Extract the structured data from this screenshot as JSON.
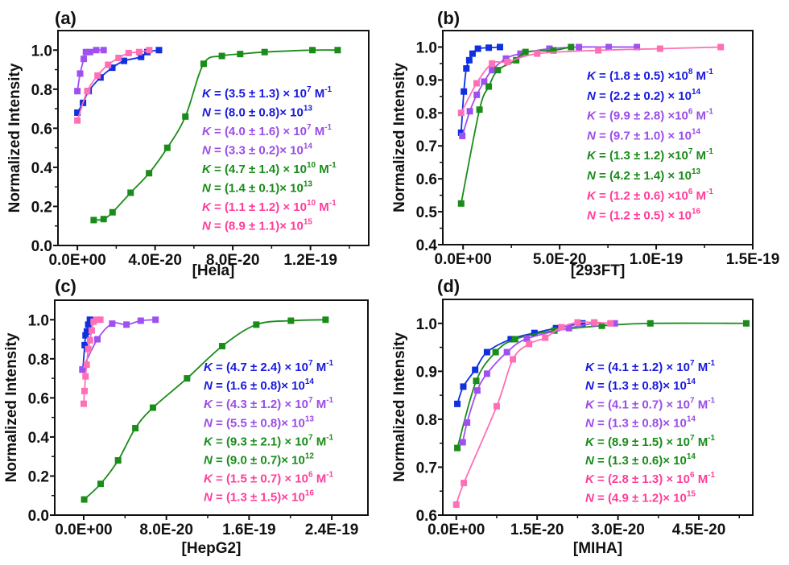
{
  "chart_data": [
    {
      "panel": "(a)",
      "type": "scatter",
      "xlabel": "[Hela]",
      "ylabel": "Normalized Intensity",
      "xlim": [
        -1e-20,
        1.5e-19
      ],
      "ylim": [
        0.0,
        1.1
      ],
      "xticks": [
        {
          "v": 0,
          "label": "0.0E+00"
        },
        {
          "v": 4e-20,
          "label": "4.0E-20"
        },
        {
          "v": 8e-20,
          "label": "8.0E-20"
        },
        {
          "v": 1.2e-19,
          "label": "1.2E-19"
        }
      ],
      "xminor": [
        2e-20,
        6e-20,
        1e-19,
        1.4e-19
      ],
      "yticks": [
        {
          "v": 0,
          "label": "0.0"
        },
        {
          "v": 0.2,
          "label": "0.2"
        },
        {
          "v": 0.4,
          "label": "0.4"
        },
        {
          "v": 0.6,
          "label": "0.6"
        },
        {
          "v": 0.8,
          "label": "0.8"
        },
        {
          "v": 1.0,
          "label": "1.0"
        }
      ],
      "yminor": [
        0.1,
        0.3,
        0.5,
        0.7,
        0.9
      ],
      "series": [
        {
          "color": "#1a8c1a",
          "x": [
            8.4e-21,
            1.35e-20,
            1.81e-20,
            2.74e-20,
            3.69e-20,
            4.63e-20,
            5.56e-20,
            6.5e-20,
            7.44e-20,
            8.38e-20,
            9.64e-20,
            1.21e-19,
            1.34e-19
          ],
          "y": [
            0.13,
            0.135,
            0.17,
            0.27,
            0.37,
            0.5,
            0.66,
            0.93,
            0.97,
            0.98,
            0.99,
            1.0,
            1.0
          ]
        },
        {
          "color": "#1030e0",
          "x": [
            0,
            2.9e-21,
            5.8e-21,
            1.19e-20,
            1.8e-20,
            2.4e-20,
            3.28e-20,
            3.6e-20,
            4.2e-20
          ],
          "y": [
            0.68,
            0.73,
            0.79,
            0.86,
            0.91,
            0.945,
            0.965,
            0.99,
            1.0
          ]
        },
        {
          "color": "#a050f0",
          "x": [
            0,
            1.4e-21,
            3.3e-21,
            4.4e-21,
            6.5e-21,
            9.7e-21,
            1.35e-20
          ],
          "y": [
            0.79,
            0.88,
            0.955,
            0.99,
            0.99,
            1.0,
            1.0
          ]
        },
        {
          "color": "#ff6fb5",
          "x": [
            0,
            5.1e-21,
            1.04e-20,
            1.58e-20,
            2.12e-20,
            2.64e-20,
            3.18e-20,
            3.7e-20
          ],
          "y": [
            0.64,
            0.79,
            0.87,
            0.925,
            0.96,
            0.985,
            0.99,
            1.0
          ]
        }
      ],
      "annotations": [
        {
          "color": "#1a1adc",
          "var": "K",
          "text": " = (3.5 ± 1.3) × 10",
          "exp": "7",
          "unit": " M",
          "unit_exp": "-1"
        },
        {
          "color": "#1a1adc",
          "var": "N",
          "text": " = (8.0 ± 0.8)× 10",
          "exp": "13"
        },
        {
          "color": "#9b4de6",
          "var": "K",
          "text": " = (4.0 ± 1.6) × 10",
          "exp": "7",
          "unit": " M",
          "unit_exp": "-1"
        },
        {
          "color": "#9b4de6",
          "var": "N",
          "text": " = (3.3 ± 0.2)× 10",
          "exp": "14"
        },
        {
          "color": "#1a8c1a",
          "var": "K",
          "text": " = (4.7 ± 1.4) × 10",
          "exp": "10",
          "unit": " M",
          "unit_exp": "-1"
        },
        {
          "color": "#1a8c1a",
          "var": "N",
          "text": " = (1.4 ± 0.1)× 10",
          "exp": "13"
        },
        {
          "color": "#ff3d9a",
          "var": "K",
          "text": " = (1.1 ± 1.2) × 10",
          "exp": "10",
          "unit": " M",
          "unit_exp": "-1"
        },
        {
          "color": "#ff3d9a",
          "var": "N",
          "text": " = (8.9 ± 1.1)× 10",
          "exp": "15"
        }
      ]
    },
    {
      "panel": "(b)",
      "type": "scatter",
      "xlabel": "[293FT]",
      "ylabel": "Normalized Intensity",
      "xlim": [
        -1.05e-20,
        1.5e-19
      ],
      "ylim": [
        0.4,
        1.05
      ],
      "xticks": [
        {
          "v": 0,
          "label": "0.0E+00"
        },
        {
          "v": 5e-20,
          "label": "5.0E-20"
        },
        {
          "v": 1e-19,
          "label": "1.0E-19"
        },
        {
          "v": 1.5e-19,
          "label": "1.5E-19"
        }
      ],
      "xminor": [
        2.5e-20,
        7.5e-20,
        1.25e-19
      ],
      "yticks": [
        {
          "v": 0.4,
          "label": "0.4"
        },
        {
          "v": 0.5,
          "label": "0.5"
        },
        {
          "v": 0.6,
          "label": "0.6"
        },
        {
          "v": 0.7,
          "label": "0.7"
        },
        {
          "v": 0.8,
          "label": "0.8"
        },
        {
          "v": 0.9,
          "label": "0.9"
        },
        {
          "v": 1.0,
          "label": "1.0"
        }
      ],
      "yminor": [
        0.45,
        0.55,
        0.65,
        0.75,
        0.85,
        0.95
      ],
      "series": [
        {
          "color": "#1030e0",
          "x": [
            -1e-21,
            4e-22,
            1.7e-21,
            3.2e-21,
            4.9e-21,
            7.7e-21,
            1.33e-20,
            1.91e-20
          ],
          "y": [
            0.74,
            0.865,
            0.935,
            0.96,
            0.98,
            0.995,
            0.998,
            1.0
          ]
        },
        {
          "color": "#a050f0",
          "x": [
            -4e-22,
            3.5e-21,
            7.1e-21,
            1.09e-20,
            1.5e-20,
            2.22e-20,
            2.97e-20,
            4.47e-20,
            6e-20,
            7.54e-20,
            9e-20
          ],
          "y": [
            0.73,
            0.805,
            0.855,
            0.895,
            0.93,
            0.965,
            0.98,
            0.995,
            1.0,
            1.0,
            1.0
          ]
        },
        {
          "color": "#1a8c1a",
          "x": [
            -1e-21,
            8.5e-21,
            1.33e-20,
            1.8e-20,
            2.75e-20,
            3.23e-20,
            4.68e-20,
            5.59e-20
          ],
          "y": [
            0.525,
            0.81,
            0.88,
            0.93,
            0.96,
            0.985,
            0.99,
            1.0
          ]
        },
        {
          "color": "#ff6fb5",
          "x": [
            -1e-21,
            7e-21,
            1.5e-20,
            2.3e-20,
            3.84e-20,
            7e-20,
            1.02e-19,
            1.334e-19
          ],
          "y": [
            0.8,
            0.89,
            0.95,
            0.955,
            0.98,
            0.99,
            0.995,
            1.0
          ]
        }
      ],
      "annotations": [
        {
          "color": "#1a1adc",
          "var": "K",
          "text": " = (1.8 ± 0.5) ×10",
          "exp": "8",
          "unit": " M",
          "unit_exp": "-1"
        },
        {
          "color": "#1a1adc",
          "var": "N",
          "text": " = (2.2 ± 0.2) × 10",
          "exp": "14"
        },
        {
          "color": "#9b4de6",
          "var": "K",
          "text": " = (9.9 ± 2.8) ×10",
          "exp": "6",
          "unit": " M",
          "unit_exp": "-1"
        },
        {
          "color": "#9b4de6",
          "var": "N",
          "text": " = (9.7 ± 1.0) × 10",
          "exp": "14"
        },
        {
          "color": "#1a8c1a",
          "var": "K",
          "text": " = (1.3 ± 1.2) ×10",
          "exp": "7",
          "unit": " M",
          "unit_exp": "-1"
        },
        {
          "color": "#1a8c1a",
          "var": "N",
          "text": " = (4.2 ± 1.4) × 10",
          "exp": "13"
        },
        {
          "color": "#ff3d9a",
          "var": "K",
          "text": " = (1.2 ± 0.6) ×10",
          "exp": "6",
          "unit": " M",
          "unit_exp": "-1"
        },
        {
          "color": "#ff3d9a",
          "var": "N",
          "text": " = (1.2 ± 0.5) × 10",
          "exp": "16"
        }
      ]
    },
    {
      "panel": "(c)",
      "type": "scatter",
      "xlabel": "[HepG2]",
      "ylabel": "Normalized Intensity",
      "xlim": [
        -2.8e-20,
        2.75e-19
      ],
      "ylim": [
        0.0,
        1.1
      ],
      "xticks": [
        {
          "v": 0,
          "label": "0.0E+00"
        },
        {
          "v": 8e-20,
          "label": "8.0E-20"
        },
        {
          "v": 1.6e-19,
          "label": "1.6E-19"
        },
        {
          "v": 2.4e-19,
          "label": "2.4E-19"
        }
      ],
      "xminor": [
        4e-20,
        1.2e-19,
        2e-19
      ],
      "yticks": [
        {
          "v": 0,
          "label": "0.0"
        },
        {
          "v": 0.2,
          "label": "0.2"
        },
        {
          "v": 0.4,
          "label": "0.4"
        },
        {
          "v": 0.6,
          "label": "0.6"
        },
        {
          "v": 0.8,
          "label": "0.8"
        },
        {
          "v": 1.0,
          "label": "1.0"
        }
      ],
      "yminor": [
        0.1,
        0.3,
        0.5,
        0.7,
        0.9
      ],
      "series": [
        {
          "color": "#1a8c1a",
          "x": [
            5e-22,
            1.64e-20,
            3.33e-20,
            5e-20,
            6.7e-20,
            1e-19,
            1.34e-19,
            1.67e-19,
            2.005e-19,
            2.34e-19
          ],
          "y": [
            0.08,
            0.16,
            0.28,
            0.445,
            0.55,
            0.7,
            0.865,
            0.975,
            0.995,
            1.0
          ]
        },
        {
          "color": "#1030e0",
          "x": [
            -8e-22,
            1e-21,
            1.8e-21,
            3.1e-21,
            4.4e-21,
            6e-21
          ],
          "y": [
            0.745,
            0.87,
            0.92,
            0.94,
            0.975,
            1.0
          ]
        },
        {
          "color": "#a050f0",
          "x": [
            -1.3e-21,
            1.33e-20,
            2.76e-20,
            4.14e-20,
            5.52e-20,
            6.95e-20
          ],
          "y": [
            0.745,
            0.9,
            0.98,
            0.975,
            0.995,
            1.0
          ]
        },
        {
          "color": "#ff6fb5",
          "x": [
            0,
            8e-22,
            1.8e-21,
            2.9e-21,
            4.4e-21,
            6.2e-21,
            7.8e-21,
            9.6e-21,
            1.22e-20,
            1.61e-20
          ],
          "y": [
            0.57,
            0.635,
            0.71,
            0.77,
            0.85,
            0.895,
            0.945,
            0.99,
            1.0,
            1.0
          ]
        }
      ],
      "annotations": [
        {
          "color": "#1a1adc",
          "var": "K",
          "text": " = (4.7 ± 2.4) × 10",
          "exp": "7",
          "unit": " M",
          "unit_exp": "-1"
        },
        {
          "color": "#1a1adc",
          "var": "N",
          "text": " = (1.6 ± 0.8)× 10",
          "exp": "14"
        },
        {
          "color": "#9b4de6",
          "var": "K",
          "text": " = (4.3 ± 1.2) × 10",
          "exp": "7",
          "unit": " M",
          "unit_exp": "-1"
        },
        {
          "color": "#9b4de6",
          "var": "N",
          "text": " = (5.5 ± 0.8)× 10",
          "exp": "13"
        },
        {
          "color": "#1a8c1a",
          "var": "K",
          "text": " = (9.3 ± 2.1) × 10",
          "exp": "7",
          "unit": " M",
          "unit_exp": "-1"
        },
        {
          "color": "#1a8c1a",
          "var": "N",
          "text": " = (9.0 ± 0.7)× 10",
          "exp": "12"
        },
        {
          "color": "#ff3d9a",
          "var": "K",
          "text": " = (1.5 ± 0.7) × 10",
          "exp": "6",
          "unit": " M",
          "unit_exp": "-1"
        },
        {
          "color": "#ff3d9a",
          "var": "N",
          "text": " = (1.3 ± 1.5)× 10",
          "exp": "16"
        }
      ]
    },
    {
      "panel": "(d)",
      "type": "scatter",
      "xlabel": "[MIHA]",
      "ylabel": "Normalized Intensity",
      "xlim": [
        -2.5e-21,
        5.5e-20
      ],
      "ylim": [
        0.6,
        1.05
      ],
      "xticks": [
        {
          "v": 0,
          "label": "0.0E+00"
        },
        {
          "v": 1.5e-20,
          "label": "1.5E-20"
        },
        {
          "v": 3e-20,
          "label": "3.0E-20"
        },
        {
          "v": 4.5e-20,
          "label": "4.5E-20"
        }
      ],
      "xminor": [
        7.5e-21,
        2.25e-20,
        3.75e-20,
        5.25e-20
      ],
      "yticks": [
        {
          "v": 0.6,
          "label": "0.6"
        },
        {
          "v": 0.7,
          "label": "0.7"
        },
        {
          "v": 0.8,
          "label": "0.8"
        },
        {
          "v": 0.9,
          "label": "0.9"
        },
        {
          "v": 1.0,
          "label": "1.0"
        }
      ],
      "yminor": [
        0.65,
        0.75,
        0.85,
        0.95
      ],
      "series": [
        {
          "color": "#1030e0",
          "x": [
            2e-22,
            1.3e-21,
            3.5e-21,
            5.7e-21,
            1.01e-20,
            1.45e-20,
            1.85e-20,
            2.34e-20
          ],
          "y": [
            0.832,
            0.868,
            0.903,
            0.94,
            0.967,
            0.98,
            0.99,
            1.0
          ]
        },
        {
          "color": "#1a8c1a",
          "x": [
            2e-22,
            3.7e-21,
            7.3e-21,
            1.09e-20,
            1.82e-20,
            2.7e-20,
            3.6e-20,
            5.38e-20
          ],
          "y": [
            0.74,
            0.88,
            0.94,
            0.967,
            0.985,
            0.995,
            1.0,
            1.0
          ]
        },
        {
          "color": "#a050f0",
          "x": [
            1.2e-21,
            2e-21,
            3.9e-21,
            5.7e-21,
            9.4e-21,
            1.31e-20,
            2.09e-20,
            2.56e-20,
            2.94e-20
          ],
          "y": [
            0.752,
            0.793,
            0.86,
            0.895,
            0.94,
            0.968,
            0.99,
            1.0,
            1.0
          ]
        },
        {
          "color": "#ff6fb5",
          "x": [
            0,
            1.4e-21,
            7.5e-21,
            1.05e-20,
            1.35e-20,
            1.65e-20,
            1.95e-20,
            2.25e-20,
            2.56e-20,
            2.86e-20
          ],
          "y": [
            0.622,
            0.667,
            0.827,
            0.925,
            0.957,
            0.97,
            0.992,
            1.002,
            1.002,
            1.0
          ]
        }
      ],
      "annotations": [
        {
          "color": "#1a1adc",
          "var": "K",
          "text": " = (4.1 ± 1.2) × 10",
          "exp": "7",
          "unit": " M",
          "unit_exp": "-1"
        },
        {
          "color": "#1a1adc",
          "var": "N",
          "text": " = (1.3 ± 0.8)× 10",
          "exp": "14"
        },
        {
          "color": "#9b4de6",
          "var": "K",
          "text": " = (4.1 ± 0.7) × 10",
          "exp": "7",
          "unit": " M",
          "unit_exp": "-1"
        },
        {
          "color": "#9b4de6",
          "var": "N",
          "text": " = (1.3 ± 0.8)× 10",
          "exp": "14"
        },
        {
          "color": "#1a8c1a",
          "var": "K",
          "text": " = (8.9 ± 1.5) × 10",
          "exp": "7",
          "unit": " M",
          "unit_exp": "-1"
        },
        {
          "color": "#1a8c1a",
          "var": "N",
          "text": " = (1.3 ± 0.6)× 10",
          "exp": "14"
        },
        {
          "color": "#ff3d9a",
          "var": "K",
          "text": " = (2.8 ± 1.3) × 10",
          "exp": "6",
          "unit": " M",
          "unit_exp": "-1"
        },
        {
          "color": "#ff3d9a",
          "var": "N",
          "text": " = (4.9 ± 1.2)× 10",
          "exp": "15"
        }
      ]
    }
  ]
}
